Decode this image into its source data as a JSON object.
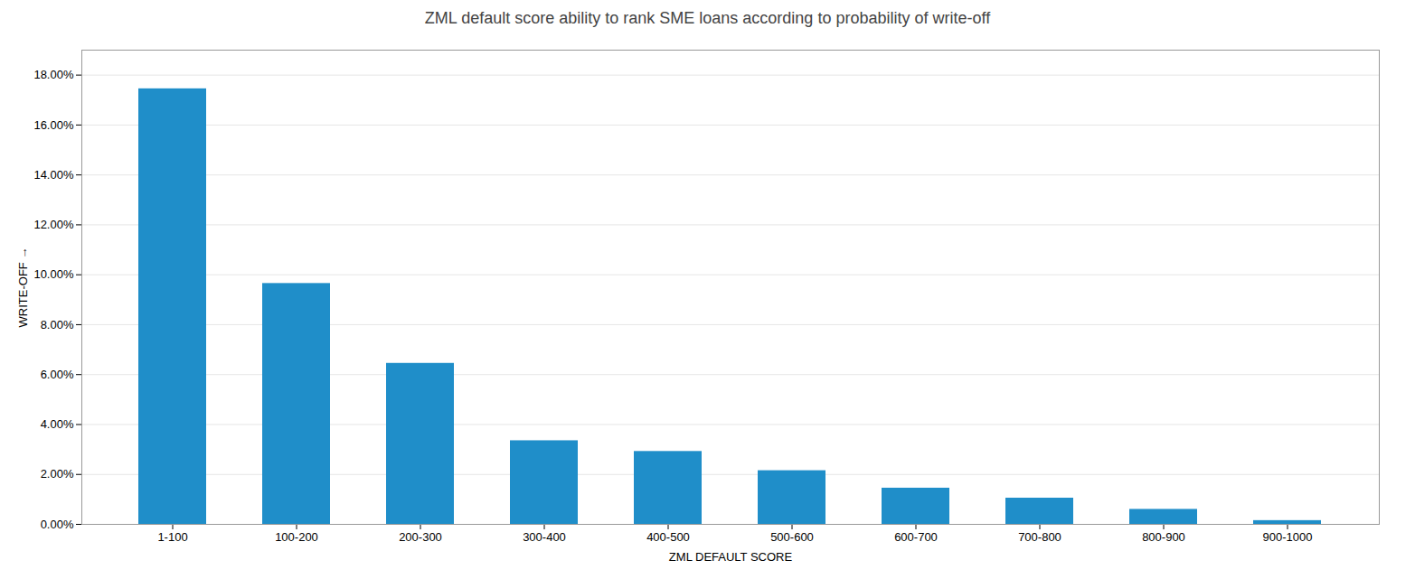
{
  "chart_data": {
    "type": "bar",
    "title": "ZML default score ability to rank SME loans according to probability of write-off",
    "xlabel": "ZML DEFAULT SCORE",
    "ylabel": "WRITE-OFF",
    "categories": [
      "1-100",
      "100-200",
      "200-300",
      "300-400",
      "400-500",
      "500-600",
      "600-700",
      "700-800",
      "800-900",
      "900-1000"
    ],
    "values": [
      0.1745,
      0.0965,
      0.0645,
      0.0335,
      0.0292,
      0.0215,
      0.0145,
      0.0105,
      0.006,
      0.0015
    ],
    "color": "#1f8ec9",
    "ylim": [
      0,
      0.19
    ],
    "yticks": [
      {
        "value": 0.0,
        "label": "0.00%"
      },
      {
        "value": 0.02,
        "label": "2.00%"
      },
      {
        "value": 0.04,
        "label": "4.00%"
      },
      {
        "value": 0.06,
        "label": "6.00%"
      },
      {
        "value": 0.08,
        "label": "8.00%"
      },
      {
        "value": 0.1,
        "label": "10.00%"
      },
      {
        "value": 0.12,
        "label": "12.00%"
      },
      {
        "value": 0.14,
        "label": "14.00%"
      },
      {
        "value": 0.16,
        "label": "16.00%"
      },
      {
        "value": 0.18,
        "label": "18.00%"
      }
    ],
    "grid": true
  }
}
